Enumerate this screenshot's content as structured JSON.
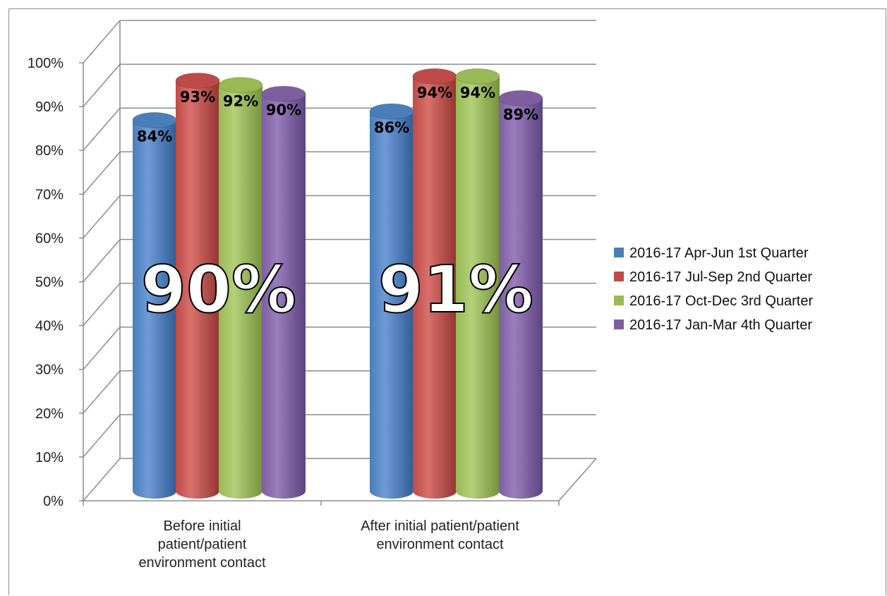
{
  "chart_data": {
    "type": "bar",
    "style": "3d-cylinder",
    "categories": [
      [
        "Before initial",
        "patient/patient",
        "environment contact"
      ],
      [
        "After initial patient/patient",
        "environment contact"
      ]
    ],
    "series": [
      {
        "name": "2016-17 Apr-Jun 1st Quarter",
        "color": "#4a7ebb",
        "values": [
          84,
          86
        ],
        "labels": [
          "84%",
          "86%"
        ]
      },
      {
        "name": "2016-17 Jul-Sep 2nd Quarter",
        "color": "#be4b48",
        "values": [
          93,
          94
        ],
        "labels": [
          "93%",
          "94%"
        ]
      },
      {
        "name": "2016-17 Oct-Dec 3rd Quarter",
        "color": "#98b954",
        "values": [
          92,
          94
        ],
        "labels": [
          "92%",
          "94%"
        ]
      },
      {
        "name": "2016-17 Jan-Mar 4th Quarter",
        "color": "#7d5fa0",
        "values": [
          90,
          89
        ],
        "labels": [
          "90%",
          "89%"
        ]
      }
    ],
    "annotations": [
      "90%",
      "91%"
    ],
    "y_ticks": [
      "0%",
      "10%",
      "20%",
      "30%",
      "40%",
      "50%",
      "60%",
      "70%",
      "80%",
      "90%",
      "100%"
    ],
    "ylim": [
      0,
      100
    ],
    "grid": true,
    "legend": "right"
  }
}
